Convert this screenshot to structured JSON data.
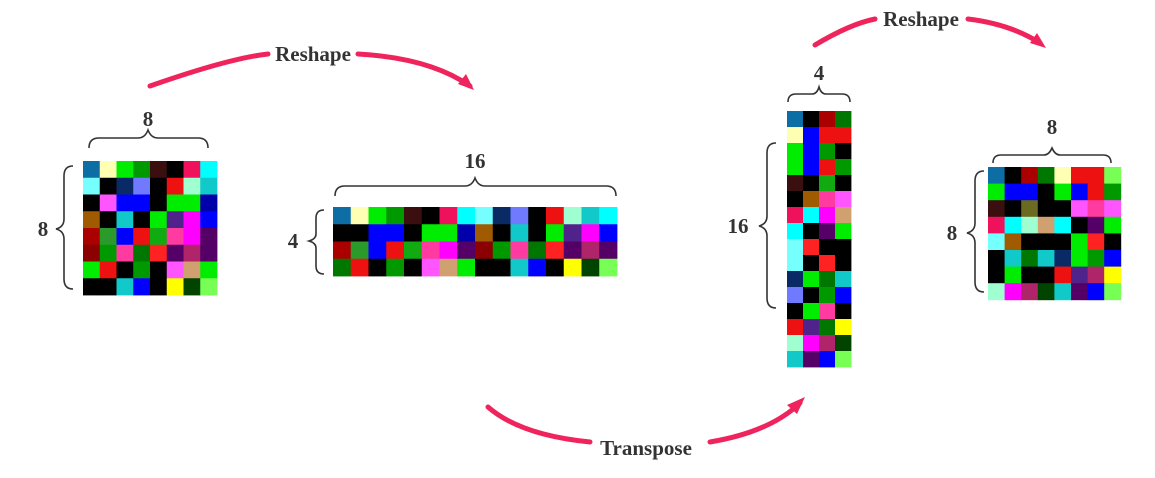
{
  "operations": {
    "reshape_1": "Reshape",
    "transpose": "Transpose",
    "reshape_2": "Reshape"
  },
  "arrow_color": "#f0245c",
  "palette": {
    "a": "#0d6ea5",
    "b": "#ffffb4",
    "c": "#00ec00",
    "d": "#009900",
    "e": "#3b0f0f",
    "f": "#000000",
    "g": "#f0115d",
    "h": "#00ffff",
    "i": "#75ffff",
    "j": "#0a2a66",
    "k": "#6f7aff",
    "l": "#0b0b0b",
    "m": "#ee1111",
    "n": "#a0ffd0",
    "o": "#12c9c9",
    "p": "#0000ff",
    "q": "#ff55ff",
    "r": "#0000aa",
    "s": "#a05a00",
    "t": "#2a9a2a",
    "u": "#50238c",
    "v": "#ff00ff",
    "w": "#b0256a",
    "x": "#aa0000",
    "y": "#ff3aa0",
    "z": "#11aa11",
    "A": "#550066",
    "B": "#8b0000",
    "C": "#007700",
    "D": "#ff2222",
    "E": "#d0a070",
    "F": "#ffff00",
    "G": "#004400",
    "H": "#77ff55",
    "I": "#6a6a20",
    "J": "#4a0000",
    "K": "#00aaff",
    "L": "#00cc00",
    "M": "#2a0000",
    "N": "#442200",
    "O": "#aa6633"
  },
  "matrices": [
    {
      "id": "square-8x8",
      "rows_label": "8",
      "cols_label": "8",
      "cells": [
        "abcdefgh",
        "ifjkfmno",
        "fqppfccr",
        "sfofcuvp",
        "xtpmzyvA",
        "BdyCDAwA",
        "cmfdfqEc",
        "ffopfFGH"
      ]
    },
    {
      "id": "wide-4x16",
      "rows_label": "4",
      "cols_label": "16",
      "cells": [
        "abcdefghijkfmnoh",
        "ffppfccrsfofcuvp",
        "xtpmzyvABdyCDAwA",
        "CmfdfqEcffopfFGH"
      ]
    },
    {
      "id": "tall-16x4",
      "rows_label": "16",
      "cols_label": "4",
      "cells": [
        "afxC",
        "bpmm",
        "cpdf",
        "cpmd",
        "efzf",
        "fsyq",
        "ghvE",
        "hfAc",
        "iDff",
        "ifDf",
        "jcCo",
        "kfdp",
        "fcyf",
        "muCF",
        "nvwG",
        "oApH"
      ]
    },
    {
      "id": "square-8x8-result",
      "rows_label": "8",
      "cols_label": "8",
      "cells": [
        "afxCbmmH",
        "cppfcpmd",
        "efIffqyq",
        "ghnEhfAc",
        "isfffcDf",
        "foCojcdp",
        "fcffmuwF",
        "nvwGoApH"
      ]
    }
  ]
}
